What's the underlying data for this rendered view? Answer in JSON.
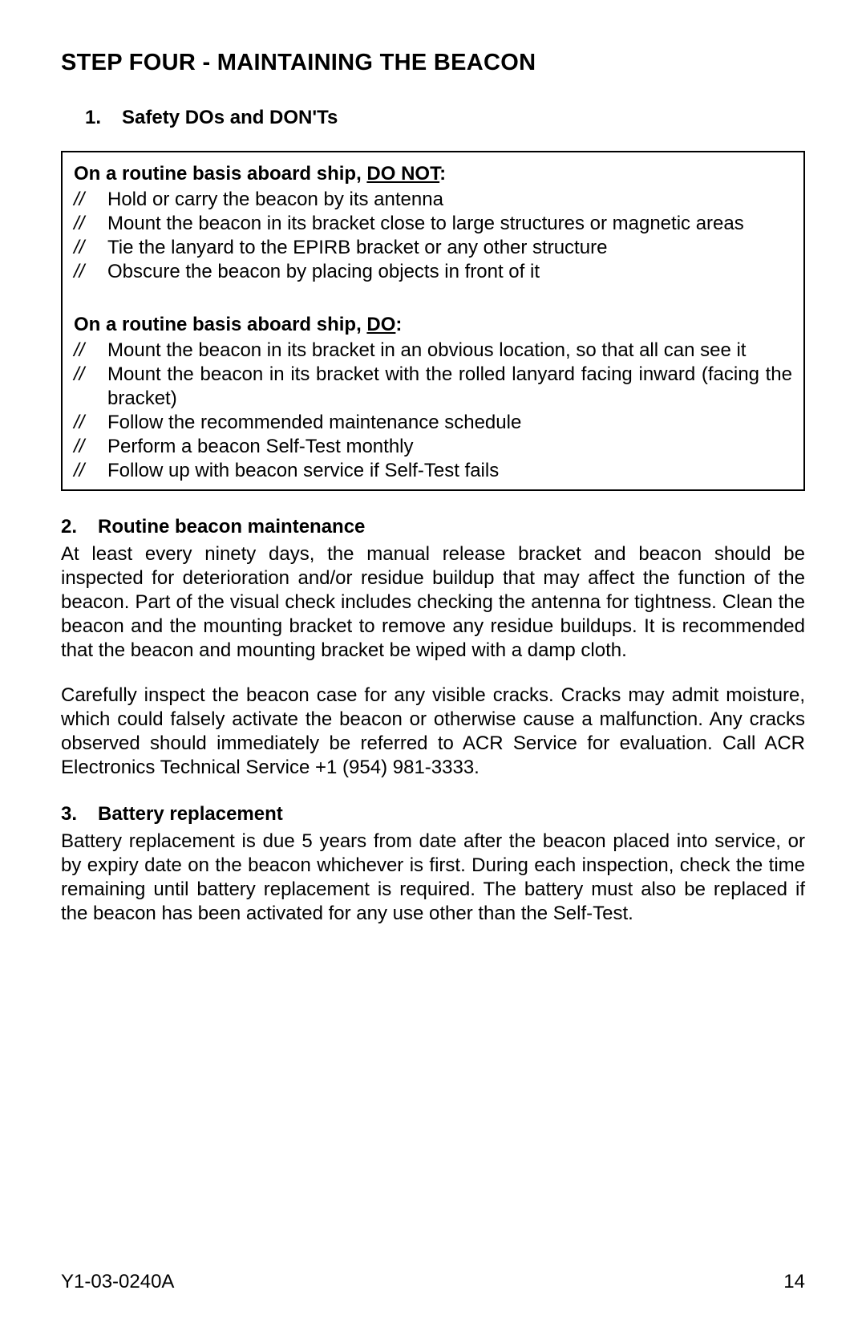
{
  "title": "STEP FOUR - MAINTAINING THE BEACON",
  "section1": {
    "num": "1.",
    "heading": "Safety DOs and DON'Ts",
    "doNot": {
      "prefix": "On a routine basis aboard ship, ",
      "emphasis": "DO NOT",
      "colon": ":",
      "items": [
        "Hold or carry the beacon by its antenna",
        "Mount the beacon in its bracket close to large structures or magnetic areas",
        "Tie the lanyard to the EPIRB bracket or any other structure",
        "Obscure the beacon by placing objects in front of it"
      ]
    },
    "do": {
      "prefix": "On a routine basis aboard ship, ",
      "emphasis": "DO",
      "colon": ":",
      "items": [
        "Mount the beacon in its bracket in an obvious location, so that all can see it",
        "Mount the beacon in its bracket with the rolled lanyard facing inward (facing the bracket)",
        "Follow the recommended maintenance schedule",
        "Perform a beacon Self-Test monthly",
        "Follow up with beacon service if Self-Test fails"
      ]
    },
    "bulletMark": "//"
  },
  "section2": {
    "num": "2.",
    "heading": "Routine beacon maintenance",
    "para1": "At least every ninety days, the manual release bracket and beacon should be inspected for deterioration and/or residue buildup that may affect the function of the beacon. Part of the visual check includes checking the antenna for tightness. Clean the beacon and the mounting bracket to remove any residue buildups. It is recommended that the beacon and mounting bracket be wiped with a damp cloth.",
    "para2": "Carefully inspect the beacon case for any visible cracks. Cracks may admit moisture, which could falsely activate the beacon or otherwise cause a malfunction. Any cracks observed should immediately be referred to ACR Service for evaluation. Call ACR Electronics Technical Service +1 (954) 981-3333."
  },
  "section3": {
    "num": "3.",
    "heading": "Battery replacement",
    "para": "Battery replacement is due 5 years from date after the beacon placed into service, or by expiry date on the beacon whichever is first. During each inspection, check the time remaining until battery replacement is required. The battery must also be replaced if the beacon has been activated for any use other than the Self-Test."
  },
  "footer": {
    "docId": "Y1-03-0240A",
    "pageNum": "14"
  }
}
